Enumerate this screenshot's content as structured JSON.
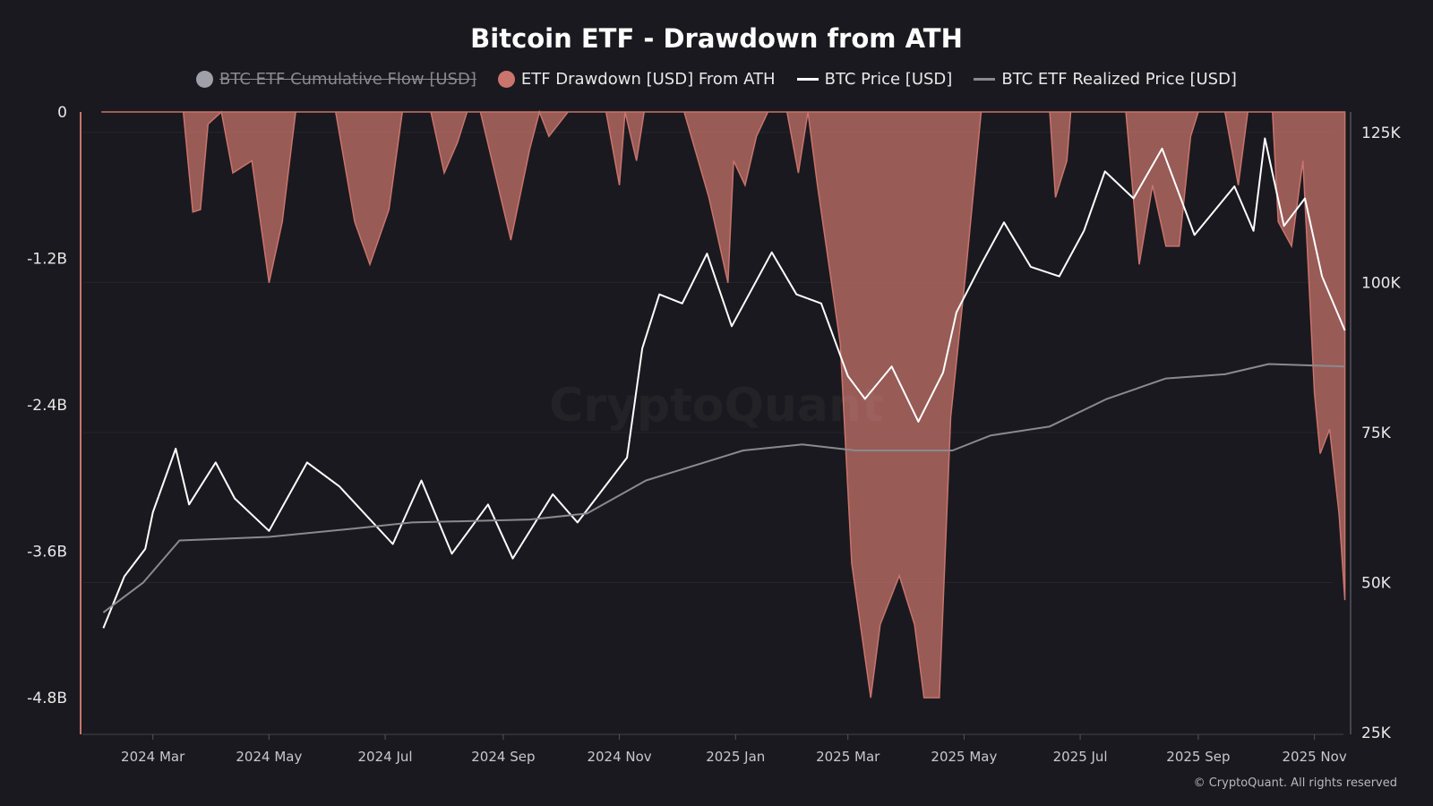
{
  "chart_data": {
    "type": "line",
    "title": "Bitcoin ETF - Drawdown from ATH",
    "legend": [
      {
        "name": "BTC ETF Cumulative Flow [USD]",
        "color": "#a0a0aa",
        "hidden": true,
        "marker": "circle"
      },
      {
        "name": "ETF Drawdown [USD] From ATH",
        "color": "#c9746c",
        "hidden": false,
        "marker": "circle"
      },
      {
        "name": "BTC Price [USD]",
        "color": "#ffffff",
        "hidden": false,
        "marker": "line"
      },
      {
        "name": "BTC ETF Realized Price [USD]",
        "color": "#8a8a8e",
        "hidden": false,
        "marker": "line"
      }
    ],
    "legend_position": "top-center",
    "x_ticks": [
      "2024 Mar",
      "2024 May",
      "2024 Jul",
      "2024 Sep",
      "2024 Nov",
      "2025 Jan",
      "2025 Mar",
      "2025 May",
      "2025 Jul",
      "2025 Sep",
      "2025 Nov"
    ],
    "x_tick_dates": [
      "2024-03-01",
      "2024-05-01",
      "2024-07-01",
      "2024-09-01",
      "2024-11-01",
      "2025-01-01",
      "2025-03-01",
      "2025-05-01",
      "2025-07-01",
      "2025-09-01",
      "2025-11-01"
    ],
    "x_range": [
      "2024-01-24",
      "2025-11-20"
    ],
    "y_left": {
      "ticks": [
        0,
        -1.2,
        -2.4,
        -3.6,
        -4.8
      ],
      "tick_labels": [
        "0",
        "-1.2B",
        "-2.4B",
        "-3.6B",
        "-4.8B"
      ],
      "range": [
        -5.1,
        0
      ],
      "unit": "B USD"
    },
    "y_right": {
      "ticks": [
        125,
        100,
        75,
        50,
        25
      ],
      "tick_labels": [
        "125K",
        "100K",
        "75K",
        "50K",
        "25K"
      ],
      "range": [
        24.7,
        128.4
      ],
      "unit": "K USD"
    },
    "grid": true,
    "series": [
      {
        "name": "ETF Drawdown [USD] From ATH",
        "axis": "left",
        "type": "area",
        "color": "#c9746c",
        "points": [
          [
            "2024-02-03",
            0
          ],
          [
            "2024-03-17",
            0
          ],
          [
            "2024-03-22",
            -0.82
          ],
          [
            "2024-03-26",
            -0.8
          ],
          [
            "2024-03-30",
            -0.1
          ],
          [
            "2024-04-06",
            0
          ],
          [
            "2024-04-12",
            -0.5
          ],
          [
            "2024-04-22",
            -0.4
          ],
          [
            "2024-05-01",
            -1.4
          ],
          [
            "2024-05-08",
            -0.9
          ],
          [
            "2024-05-15",
            0
          ],
          [
            "2024-06-05",
            0
          ],
          [
            "2024-06-15",
            -0.9
          ],
          [
            "2024-06-23",
            -1.25
          ],
          [
            "2024-07-03",
            -0.8
          ],
          [
            "2024-07-10",
            0
          ],
          [
            "2024-07-25",
            0
          ],
          [
            "2024-08-01",
            -0.5
          ],
          [
            "2024-08-08",
            -0.25
          ],
          [
            "2024-08-13",
            0
          ],
          [
            "2024-08-20",
            0
          ],
          [
            "2024-09-05",
            -1.05
          ],
          [
            "2024-09-15",
            -0.3
          ],
          [
            "2024-09-20",
            0
          ],
          [
            "2024-09-25",
            -0.2
          ],
          [
            "2024-10-05",
            0
          ],
          [
            "2024-10-25",
            0
          ],
          [
            "2024-11-01",
            -0.6
          ],
          [
            "2024-11-04",
            0
          ],
          [
            "2024-11-10",
            -0.4
          ],
          [
            "2024-11-14",
            0
          ],
          [
            "2024-12-05",
            0
          ],
          [
            "2024-12-18",
            -0.7
          ],
          [
            "2024-12-28",
            -1.4
          ],
          [
            "2024-12-31",
            -0.4
          ],
          [
            "2025-01-06",
            -0.6
          ],
          [
            "2025-01-12",
            -0.2
          ],
          [
            "2025-01-18",
            0
          ],
          [
            "2025-01-28",
            0
          ],
          [
            "2025-02-03",
            -0.5
          ],
          [
            "2025-02-08",
            0
          ],
          [
            "2025-02-13",
            -0.6
          ],
          [
            "2025-02-25",
            -1.9
          ],
          [
            "2025-03-03",
            -3.7
          ],
          [
            "2025-03-13",
            -4.8
          ],
          [
            "2025-03-18",
            -4.2
          ],
          [
            "2025-03-28",
            -3.8
          ],
          [
            "2025-04-05",
            -4.2
          ],
          [
            "2025-04-10",
            -4.8
          ],
          [
            "2025-04-18",
            -4.8
          ],
          [
            "2025-04-24",
            -2.5
          ],
          [
            "2025-05-02",
            -1.3
          ],
          [
            "2025-05-10",
            0
          ],
          [
            "2025-06-15",
            0
          ],
          [
            "2025-06-18",
            -0.7
          ],
          [
            "2025-06-24",
            -0.4
          ],
          [
            "2025-06-26",
            0
          ],
          [
            "2025-07-25",
            0
          ],
          [
            "2025-08-01",
            -1.25
          ],
          [
            "2025-08-08",
            -0.6
          ],
          [
            "2025-08-15",
            -1.1
          ],
          [
            "2025-08-22",
            -1.1
          ],
          [
            "2025-08-28",
            -0.2
          ],
          [
            "2025-09-01",
            0
          ],
          [
            "2025-09-15",
            0
          ],
          [
            "2025-09-22",
            -0.6
          ],
          [
            "2025-09-27",
            0
          ],
          [
            "2025-10-10",
            0
          ],
          [
            "2025-10-13",
            -0.9
          ],
          [
            "2025-10-20",
            -1.1
          ],
          [
            "2025-10-26",
            -0.4
          ],
          [
            "2025-11-01",
            -2.3
          ],
          [
            "2025-11-04",
            -2.8
          ],
          [
            "2025-11-09",
            -2.6
          ],
          [
            "2025-11-14",
            -3.3
          ],
          [
            "2025-11-17",
            -4.0
          ]
        ]
      },
      {
        "name": "BTC Price [USD]",
        "axis": "right",
        "type": "line",
        "color": "#ffffff",
        "points": [
          [
            "2024-02-04",
            42.4
          ],
          [
            "2024-02-15",
            51
          ],
          [
            "2024-02-26",
            55.6
          ],
          [
            "2024-03-01",
            61.7
          ],
          [
            "2024-03-13",
            72.3
          ],
          [
            "2024-03-20",
            63
          ],
          [
            "2024-04-03",
            70
          ],
          [
            "2024-04-13",
            64
          ],
          [
            "2024-05-01",
            58.6
          ],
          [
            "2024-05-21",
            70
          ],
          [
            "2024-06-07",
            66
          ],
          [
            "2024-07-05",
            56.4
          ],
          [
            "2024-07-20",
            67
          ],
          [
            "2024-08-05",
            54.8
          ],
          [
            "2024-08-24",
            63
          ],
          [
            "2024-09-06",
            54
          ],
          [
            "2024-09-27",
            64.7
          ],
          [
            "2024-10-10",
            60
          ],
          [
            "2024-11-05",
            70.8
          ],
          [
            "2024-11-13",
            89
          ],
          [
            "2024-11-22",
            98
          ],
          [
            "2024-12-04",
            96.5
          ],
          [
            "2024-12-17",
            104.8
          ],
          [
            "2024-12-30",
            92.7
          ],
          [
            "2025-01-20",
            105
          ],
          [
            "2025-02-02",
            98
          ],
          [
            "2025-02-15",
            96.5
          ],
          [
            "2025-03-01",
            84.4
          ],
          [
            "2025-03-10",
            80.6
          ],
          [
            "2025-03-24",
            86
          ],
          [
            "2025-04-07",
            76.8
          ],
          [
            "2025-04-20",
            85
          ],
          [
            "2025-04-27",
            95
          ],
          [
            "2025-05-10",
            103
          ],
          [
            "2025-05-22",
            110
          ],
          [
            "2025-06-05",
            102.6
          ],
          [
            "2025-06-20",
            101
          ],
          [
            "2025-07-03",
            108.6
          ],
          [
            "2025-07-14",
            118.5
          ],
          [
            "2025-07-29",
            114
          ],
          [
            "2025-08-13",
            122.3
          ],
          [
            "2025-08-30",
            107.9
          ],
          [
            "2025-09-20",
            116
          ],
          [
            "2025-09-30",
            108.6
          ],
          [
            "2025-10-06",
            124
          ],
          [
            "2025-10-16",
            109.4
          ],
          [
            "2025-10-27",
            114
          ],
          [
            "2025-11-05",
            101
          ],
          [
            "2025-11-17",
            92
          ]
        ]
      },
      {
        "name": "BTC ETF Realized Price [USD]",
        "axis": "right",
        "type": "line",
        "color": "#8a8a8e",
        "points": [
          [
            "2024-02-04",
            45
          ],
          [
            "2024-02-25",
            50
          ],
          [
            "2024-03-15",
            57
          ],
          [
            "2024-05-01",
            57.6
          ],
          [
            "2024-06-15",
            59
          ],
          [
            "2024-07-15",
            60
          ],
          [
            "2024-09-15",
            60.5
          ],
          [
            "2024-10-15",
            61.5
          ],
          [
            "2024-11-15",
            67
          ],
          [
            "2025-01-05",
            72
          ],
          [
            "2025-02-05",
            73
          ],
          [
            "2025-03-05",
            72
          ],
          [
            "2025-04-25",
            72
          ],
          [
            "2025-05-15",
            74.5
          ],
          [
            "2025-06-15",
            76
          ],
          [
            "2025-07-15",
            80.6
          ],
          [
            "2025-08-15",
            84
          ],
          [
            "2025-09-15",
            84.7
          ],
          [
            "2025-10-08",
            86.4
          ],
          [
            "2025-11-17",
            86
          ]
        ]
      }
    ]
  },
  "watermark": "CryptoQuant",
  "copyright": "© CryptoQuant. All rights reserved"
}
